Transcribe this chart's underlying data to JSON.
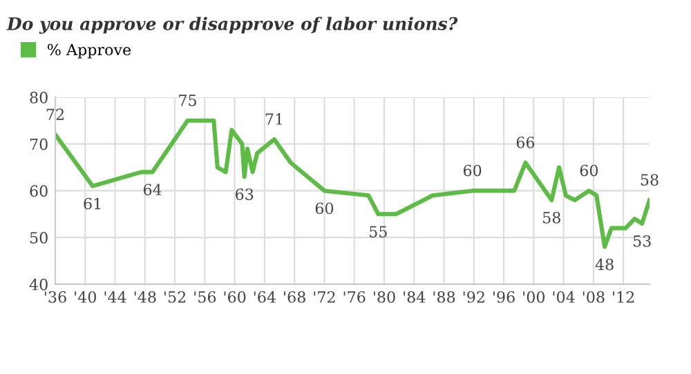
{
  "chart_data": {
    "type": "line",
    "title": "Do you approve or disapprove of labor unions?",
    "x": [
      1936,
      1941,
      1947.5,
      1949,
      1953.7,
      1957.2,
      1957.7,
      1958.8,
      1959.6,
      1961,
      1961.3,
      1961.7,
      1962.4,
      1963,
      1965.3,
      1967.5,
      1972,
      1977.9,
      1979.2,
      1981.6,
      1986.5,
      1991.8,
      1997.4,
      1998.9,
      2002.4,
      2003.4,
      2004.3,
      2005.5,
      2007.4,
      2008.4,
      2009.5,
      2010.4,
      2012.3,
      2013.5,
      2014.5,
      2015.5
    ],
    "series": [
      {
        "name": "% Approve",
        "color": "#5dbb46",
        "values": [
          72,
          61,
          64,
          64,
          75,
          75,
          65,
          64,
          73,
          70,
          63,
          69,
          64,
          68,
          71,
          66,
          60,
          59,
          55,
          55,
          59,
          60,
          60,
          66,
          58,
          65,
          59,
          58,
          60,
          59,
          48,
          52,
          52,
          54,
          53,
          58
        ]
      }
    ],
    "xlim": [
      1936,
      2015.5
    ],
    "xticks": [
      {
        "value": 1936,
        "label": "'36"
      },
      {
        "value": 1940,
        "label": "'40"
      },
      {
        "value": 1944,
        "label": "'44"
      },
      {
        "value": 1948,
        "label": "'48"
      },
      {
        "value": 1952,
        "label": "'52"
      },
      {
        "value": 1956,
        "label": "'56"
      },
      {
        "value": 1960,
        "label": "'60"
      },
      {
        "value": 1964,
        "label": "'64"
      },
      {
        "value": 1968,
        "label": "'68"
      },
      {
        "value": 1972,
        "label": "'72"
      },
      {
        "value": 1976,
        "label": "'76"
      },
      {
        "value": 1980,
        "label": "'80"
      },
      {
        "value": 1984,
        "label": "'84"
      },
      {
        "value": 1988,
        "label": "'88"
      },
      {
        "value": 1992,
        "label": "'92"
      },
      {
        "value": 1996,
        "label": "'96"
      },
      {
        "value": 2000,
        "label": "'00"
      },
      {
        "value": 2004,
        "label": "'04"
      },
      {
        "value": 2008,
        "label": "'08"
      },
      {
        "value": 2012,
        "label": "'12"
      }
    ],
    "ylim": [
      40,
      80
    ],
    "yticks": [
      40,
      50,
      60,
      70,
      80
    ],
    "grid": true,
    "legend": "top left",
    "marker": "none",
    "line_style": "solid",
    "annotations": [
      {
        "text": "72",
        "x": 1936,
        "y": 72
      },
      {
        "text": "61",
        "x": 1941,
        "y": 61
      },
      {
        "text": "64",
        "x": 1949,
        "y": 64
      },
      {
        "text": "75",
        "x": 1953.7,
        "y": 75
      },
      {
        "text": "63",
        "x": 1961.3,
        "y": 63
      },
      {
        "text": "71",
        "x": 1965.3,
        "y": 71
      },
      {
        "text": "60",
        "x": 1972,
        "y": 60
      },
      {
        "text": "55",
        "x": 1979.2,
        "y": 55
      },
      {
        "text": "60",
        "x": 1991.8,
        "y": 60
      },
      {
        "text": "66",
        "x": 1998.9,
        "y": 66
      },
      {
        "text": "58",
        "x": 2002.4,
        "y": 58
      },
      {
        "text": "60",
        "x": 2007.4,
        "y": 60
      },
      {
        "text": "48",
        "x": 2009.5,
        "y": 48
      },
      {
        "text": "53",
        "x": 2014.5,
        "y": 53
      },
      {
        "text": "58",
        "x": 2015.5,
        "y": 58
      }
    ]
  }
}
